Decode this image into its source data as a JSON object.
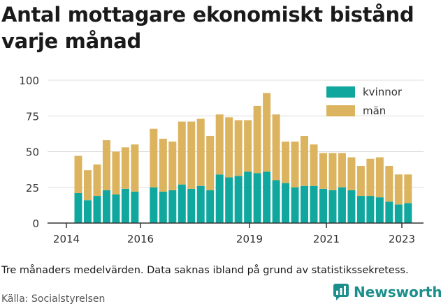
{
  "title": "Antal mottagare ekonomiskt bistånd varje månad",
  "footnote": "Tre månaders medelvärden. Data saknas ibland på grund av statistikssekretess.",
  "source": "Källa: Socialstyrelsen",
  "brand": {
    "name": "Newsworthy",
    "icon": "newsworthy-logo-icon",
    "color": "#1b8f8b"
  },
  "chart_data": {
    "type": "bar",
    "stacked": true,
    "ylim": [
      0,
      100
    ],
    "yticks": [
      0,
      25,
      50,
      75,
      100
    ],
    "xticks": [
      "2014",
      "2016",
      "2019",
      "2021",
      "2023"
    ],
    "grid": true,
    "legend_position": "top-right",
    "series": [
      {
        "name": "kvinnor",
        "color": "#10a89e",
        "values": [
          21,
          16,
          19,
          23,
          20,
          24,
          22,
          null,
          25,
          22,
          23,
          27,
          24,
          26,
          23,
          34,
          32,
          33,
          36,
          35,
          36,
          30,
          28,
          25,
          26,
          26,
          24,
          23,
          25,
          23,
          19,
          19,
          18,
          15,
          13,
          14
        ]
      },
      {
        "name": "män",
        "color": "#dcb45f",
        "values": [
          26,
          21,
          22,
          35,
          30,
          29,
          33,
          null,
          41,
          37,
          34,
          44,
          47,
          47,
          38,
          42,
          42,
          39,
          36,
          47,
          55,
          46,
          29,
          32,
          35,
          29,
          25,
          26,
          24,
          23,
          21,
          26,
          28,
          25,
          21,
          20
        ]
      }
    ]
  }
}
